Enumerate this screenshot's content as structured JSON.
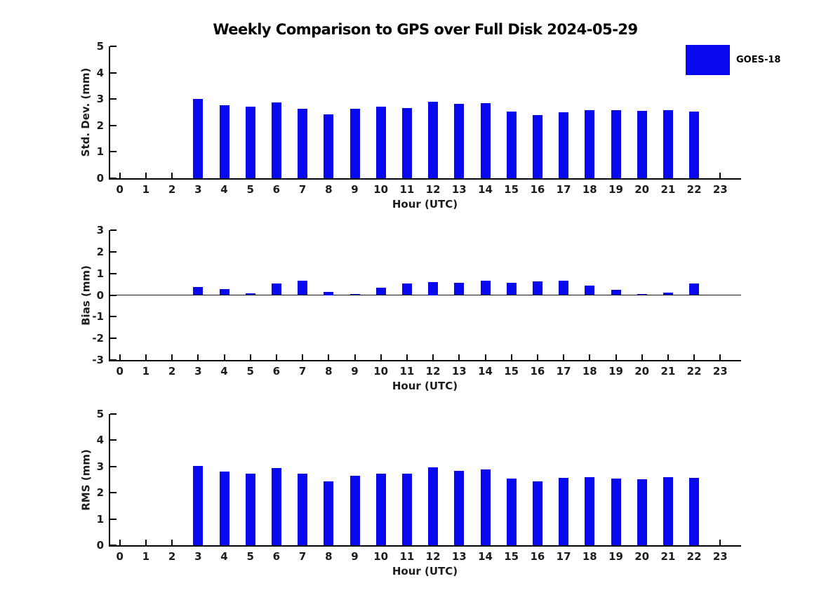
{
  "title": "Weekly Comparison to GPS over Full Disk 2024-05-29",
  "legend": {
    "label": "GOES-18",
    "position": "top-right"
  },
  "colors": {
    "bar": "#0808ee",
    "axis": "#000000",
    "text": "#1c1c1c"
  },
  "chart_data": [
    {
      "type": "bar",
      "id": "std-dev",
      "ylabel": "Std. Dev. (mm)",
      "xlabel": "Hour (UTC)",
      "ylim": [
        0,
        5
      ],
      "yticks": [
        0,
        1,
        2,
        3,
        4,
        5
      ],
      "grid": false,
      "zero_line": false,
      "categories": [
        0,
        1,
        2,
        3,
        4,
        5,
        6,
        7,
        8,
        9,
        10,
        11,
        12,
        13,
        14,
        15,
        16,
        17,
        18,
        19,
        20,
        21,
        22,
        23
      ],
      "values": [
        null,
        null,
        null,
        3.0,
        2.76,
        2.71,
        2.87,
        2.64,
        2.42,
        2.64,
        2.71,
        2.66,
        2.9,
        2.81,
        2.84,
        2.52,
        2.39,
        2.51,
        2.57,
        2.57,
        2.54,
        2.59,
        2.53,
        null
      ]
    },
    {
      "type": "bar",
      "id": "bias",
      "ylabel": "Bias (mm)",
      "xlabel": "Hour (UTC)",
      "ylim": [
        -3,
        3
      ],
      "yticks": [
        -3,
        -2,
        -1,
        0,
        1,
        2,
        3
      ],
      "grid": false,
      "zero_line": true,
      "categories": [
        0,
        1,
        2,
        3,
        4,
        5,
        6,
        7,
        8,
        9,
        10,
        11,
        12,
        13,
        14,
        15,
        16,
        17,
        18,
        19,
        20,
        21,
        22,
        23
      ],
      "values": [
        null,
        null,
        null,
        0.37,
        0.28,
        0.08,
        0.53,
        0.68,
        0.15,
        0.05,
        0.34,
        0.52,
        0.6,
        0.58,
        0.65,
        0.56,
        0.64,
        0.65,
        0.43,
        0.25,
        0.06,
        0.1,
        0.52,
        null
      ]
    },
    {
      "type": "bar",
      "id": "rms",
      "ylabel": "RMS (mm)",
      "xlabel": "Hour (UTC)",
      "ylim": [
        0,
        5
      ],
      "yticks": [
        0,
        1,
        2,
        3,
        4,
        5
      ],
      "grid": false,
      "zero_line": false,
      "categories": [
        0,
        1,
        2,
        3,
        4,
        5,
        6,
        7,
        8,
        9,
        10,
        11,
        12,
        13,
        14,
        15,
        16,
        17,
        18,
        19,
        20,
        21,
        22,
        23
      ],
      "values": [
        null,
        null,
        null,
        3.03,
        2.8,
        2.72,
        2.93,
        2.74,
        2.43,
        2.64,
        2.74,
        2.72,
        2.97,
        2.83,
        2.88,
        2.54,
        2.43,
        2.57,
        2.6,
        2.54,
        2.51,
        2.59,
        2.56,
        null
      ]
    }
  ]
}
